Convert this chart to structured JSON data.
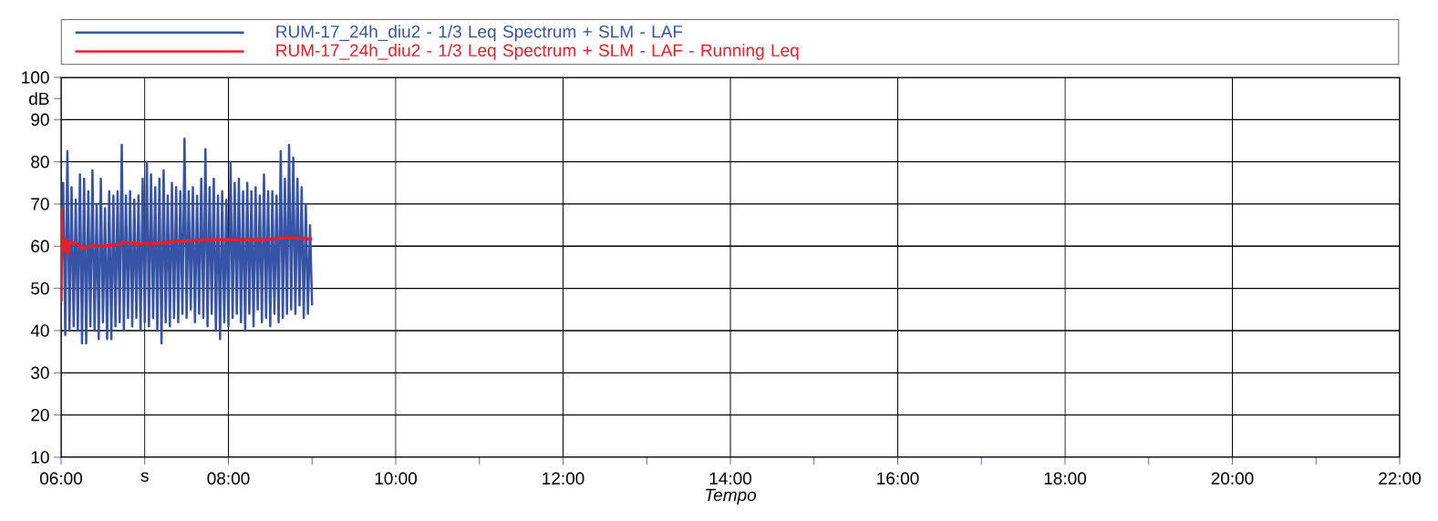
{
  "chart_data": {
    "type": "line",
    "xlabel": "Tempo",
    "xlim": [
      6,
      22
    ],
    "ylim": [
      10,
      100
    ],
    "xticks": [
      {
        "value": 6,
        "label": "06:00"
      },
      {
        "value": 7,
        "label": "s"
      },
      {
        "value": 8,
        "label": "08:00"
      },
      {
        "value": 9,
        "label": null
      },
      {
        "value": 10,
        "label": "10:00"
      },
      {
        "value": 11,
        "label": null
      },
      {
        "value": 12,
        "label": "12:00"
      },
      {
        "value": 13,
        "label": null
      },
      {
        "value": 14,
        "label": "14:00"
      },
      {
        "value": 15,
        "label": null
      },
      {
        "value": 16,
        "label": "16:00"
      },
      {
        "value": 17,
        "label": null
      },
      {
        "value": 18,
        "label": "18:00"
      },
      {
        "value": 19,
        "label": null
      },
      {
        "value": 20,
        "label": "20:00"
      },
      {
        "value": 21,
        "label": null
      },
      {
        "value": 22,
        "label": "22:00"
      }
    ],
    "yticks": [
      10,
      20,
      30,
      40,
      50,
      60,
      70,
      80,
      90,
      {
        "value": 95,
        "label": "dB"
      },
      100
    ],
    "grid": true,
    "legend": "top",
    "series": [
      {
        "name": "RUM-17_24h_diu2 - 1/3 Leq Spectrum + SLM - LAF",
        "color": "#3653a5",
        "x": [
          6.0,
          6.025,
          6.05,
          6.075,
          6.1,
          6.125,
          6.15,
          6.175,
          6.2,
          6.225,
          6.25,
          6.275,
          6.3,
          6.325,
          6.35,
          6.375,
          6.4,
          6.425,
          6.45,
          6.475,
          6.5,
          6.525,
          6.55,
          6.575,
          6.6,
          6.625,
          6.65,
          6.675,
          6.7,
          6.725,
          6.75,
          6.775,
          6.8,
          6.825,
          6.85,
          6.875,
          6.9,
          6.925,
          6.95,
          6.975,
          7.0,
          7.025,
          7.05,
          7.075,
          7.1,
          7.125,
          7.15,
          7.175,
          7.2,
          7.225,
          7.25,
          7.275,
          7.3,
          7.325,
          7.35,
          7.375,
          7.4,
          7.425,
          7.45,
          7.475,
          7.5,
          7.525,
          7.55,
          7.575,
          7.6,
          7.625,
          7.65,
          7.675,
          7.7,
          7.725,
          7.75,
          7.775,
          7.8,
          7.825,
          7.85,
          7.875,
          7.9,
          7.925,
          7.95,
          7.975,
          8.0,
          8.025,
          8.05,
          8.075,
          8.1,
          8.125,
          8.15,
          8.175,
          8.2,
          8.225,
          8.25,
          8.275,
          8.3,
          8.325,
          8.35,
          8.375,
          8.4,
          8.425,
          8.45,
          8.475,
          8.5,
          8.525,
          8.55,
          8.575,
          8.6,
          8.625,
          8.65,
          8.675,
          8.7,
          8.725,
          8.75,
          8.775,
          8.8,
          8.825,
          8.85,
          8.875,
          8.9,
          8.925,
          8.95,
          8.975,
          9.0
        ],
        "values": [
          47,
          75,
          39,
          82.5,
          40,
          74,
          41,
          71,
          40,
          77,
          37,
          76,
          37,
          73,
          41,
          78,
          40,
          70,
          38,
          76,
          42,
          69,
          38,
          73,
          38,
          72,
          41,
          73,
          42,
          84,
          40,
          72,
          43,
          73,
          41,
          71,
          43,
          72,
          40,
          76,
          42,
          80,
          41,
          77,
          43,
          74,
          40,
          76,
          37,
          78,
          42,
          72,
          41,
          75,
          43,
          74,
          42,
          73,
          44,
          85.5,
          43,
          73,
          45,
          74,
          42,
          72,
          44,
          76,
          43,
          83,
          41,
          74,
          44,
          76,
          40,
          72,
          38,
          73,
          42,
          71,
          41,
          80,
          43,
          75,
          44,
          76,
          42,
          73,
          40,
          75,
          44,
          73,
          41,
          74,
          45,
          72,
          42,
          77,
          43,
          73,
          41,
          73,
          44,
          72,
          42,
          82.5,
          43,
          76,
          44,
          84,
          45,
          81,
          44,
          76,
          46,
          74,
          43,
          70,
          44,
          65,
          46
        ]
      },
      {
        "name": "RUM-17_24h_diu2 - 1/3 Leq Spectrum + SLM - LAF - Running Leq",
        "color": "#ee1c25",
        "x": [
          6.0,
          6.003,
          6.01,
          6.03,
          6.05,
          6.08,
          6.1,
          6.2,
          6.25,
          6.35,
          6.5,
          6.72,
          6.73,
          7.0,
          7.3,
          7.44,
          7.7,
          8.0,
          8.4,
          8.7,
          9.0
        ],
        "values": [
          47,
          69,
          62,
          59,
          61.5,
          58,
          61,
          60.5,
          59.5,
          60,
          60,
          60.5,
          61,
          60.5,
          61,
          61.2,
          61.5,
          61.5,
          61.5,
          62,
          61.7
        ]
      }
    ]
  }
}
